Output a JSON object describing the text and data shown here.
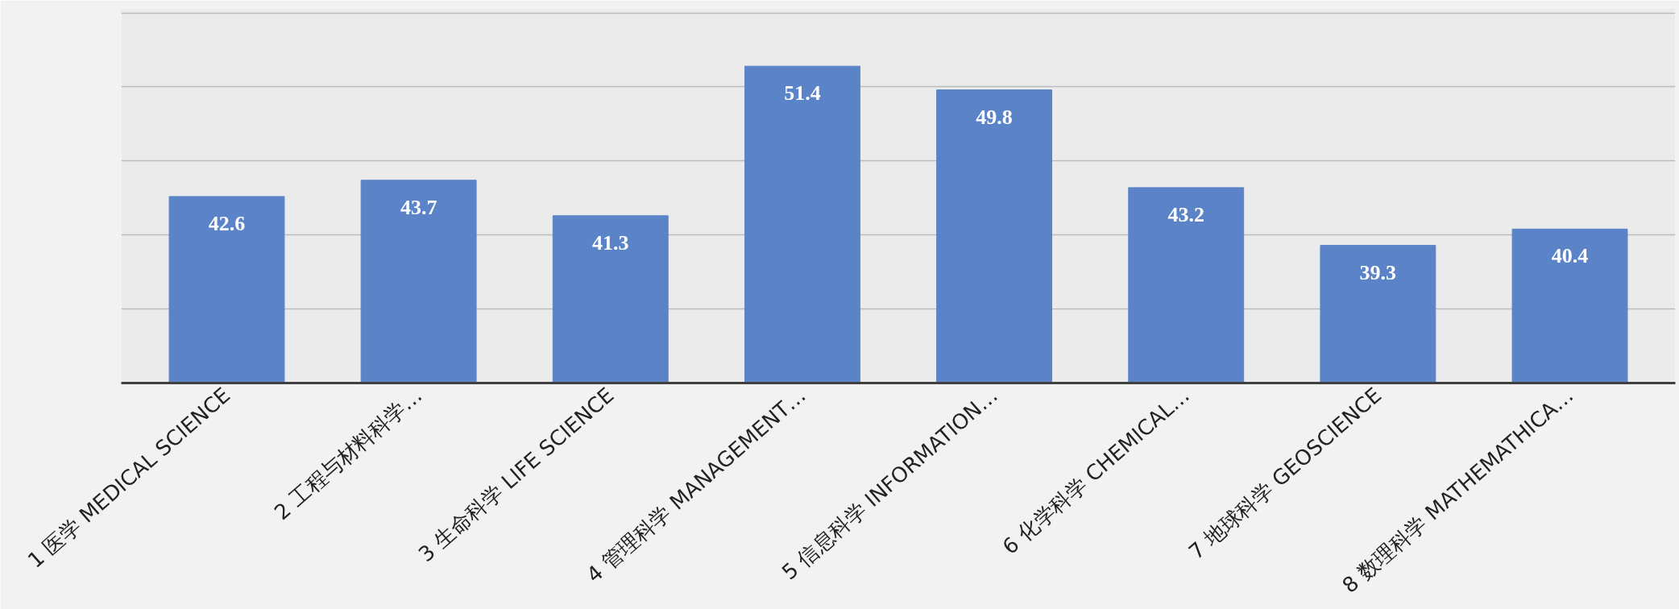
{
  "chart_data": {
    "type": "bar",
    "categories": [
      "1 医学 MEDICAL SCIENCE",
      "2 工程与材料科学…",
      "3 生命科学 LIFE SCIENCE",
      "4 管理科学 MANAGEMENT…",
      "5 信息科学 INFORMATION…",
      "6 化学科学 CHEMICAL…",
      "7 地球科学 GEOSCIENCE",
      "8 数理科学 MATHEMATHICA…"
    ],
    "values": [
      42.6,
      43.7,
      41.3,
      51.4,
      49.8,
      43.2,
      39.3,
      40.4
    ],
    "color": "#5b84c8",
    "ylim": [
      30,
      55
    ],
    "yticks": [
      {
        "value": 30,
        "label": null
      },
      {
        "value": 35,
        "label": null
      },
      {
        "value": 40,
        "label": null
      },
      {
        "value": 45,
        "label": null
      },
      {
        "value": 50,
        "label": null
      },
      {
        "value": 55,
        "label": null
      }
    ],
    "grid": "y",
    "tick_labels": "x",
    "data_labels": true
  }
}
